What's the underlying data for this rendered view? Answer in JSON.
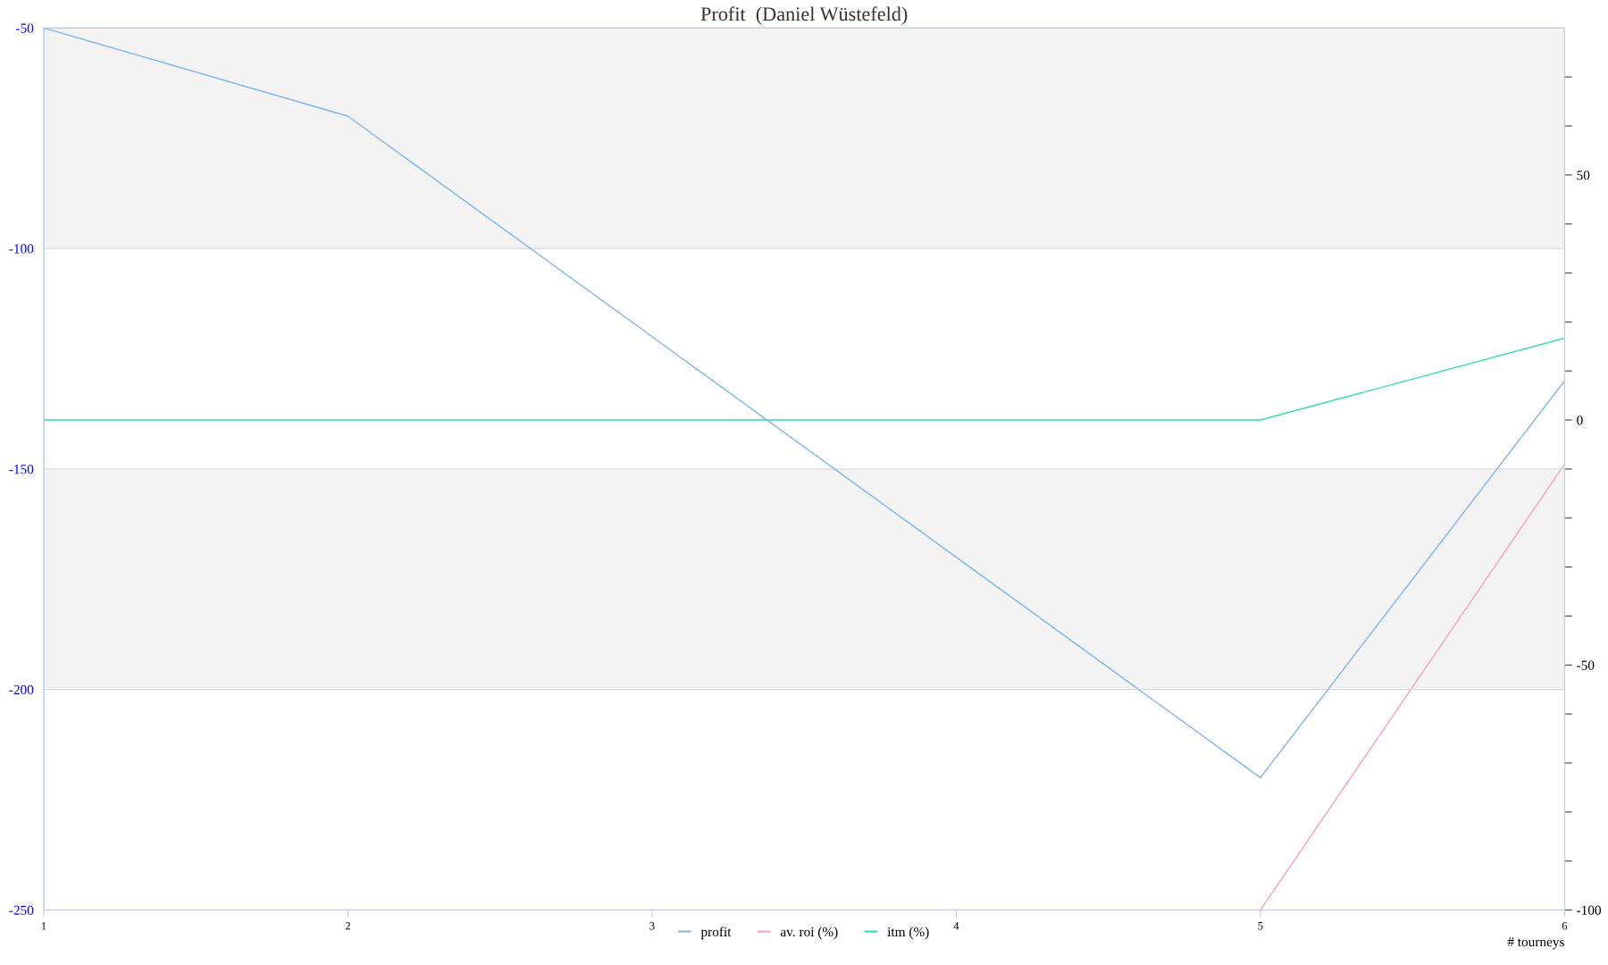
{
  "chart_data": {
    "type": "line",
    "title": "Profit  (Daniel Wüstefeld)",
    "xlabel": "# tourneys",
    "x": [
      1,
      2,
      3,
      4,
      5,
      6
    ],
    "series": [
      {
        "name": "profit",
        "color": "#7cb5ec",
        "values": [
          -50,
          -70,
          -120,
          -170,
          -220,
          -130
        ]
      },
      {
        "name": "av. roi (%)",
        "color": "#f7a1b5",
        "axis": "y2",
        "values": [
          null,
          null,
          null,
          null,
          -100,
          -9
        ]
      },
      {
        "name": "itm (%)",
        "color": "#2ee0b0",
        "axis": "y2",
        "values": [
          0,
          0,
          0,
          0,
          0,
          16.7
        ]
      }
    ],
    "xlim": [
      1,
      6
    ],
    "xticks": [
      1,
      2,
      3,
      4,
      5,
      6
    ],
    "ylim": [
      -250,
      -50
    ],
    "yticks": [
      -250,
      -200,
      -150,
      -100,
      -50
    ],
    "y2lim": [
      -100,
      80
    ],
    "y2ticks": [
      -100,
      {
        "value": -90,
        "label": null
      },
      {
        "value": -80,
        "label": null
      },
      {
        "value": -70,
        "label": null
      },
      {
        "value": -60,
        "label": null
      },
      -50,
      {
        "value": -40,
        "label": null
      },
      {
        "value": -30,
        "label": null
      },
      {
        "value": -20,
        "label": null
      },
      {
        "value": -10,
        "label": null
      },
      0,
      {
        "value": 10,
        "label": null
      },
      {
        "value": 20,
        "label": null
      },
      {
        "value": 30,
        "label": null
      },
      {
        "value": 40,
        "label": null
      },
      50,
      {
        "value": 60,
        "label": null
      },
      {
        "value": 70,
        "label": null
      }
    ],
    "bands": [
      {
        "axis": "y",
        "from": -100,
        "to": -50,
        "color": "#f3f3f3"
      },
      {
        "axis": "y",
        "from": -200,
        "to": -150,
        "color": "#f3f3f3"
      }
    ],
    "grid": "y",
    "legend": "bottom",
    "marker": "none",
    "line_style": "solid"
  }
}
